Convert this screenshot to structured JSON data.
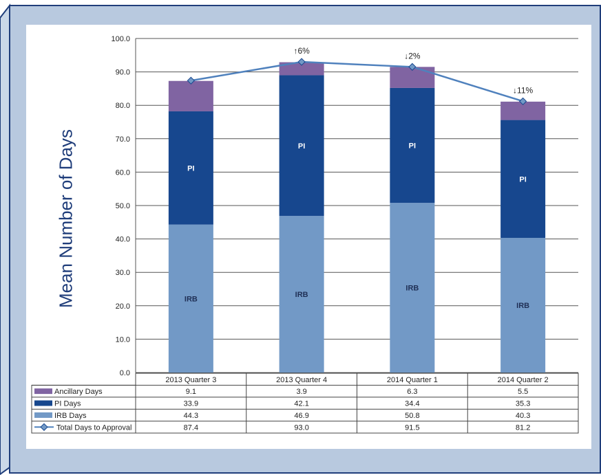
{
  "chart_data": {
    "type": "bar",
    "stacked": true,
    "categories": [
      "2013 Quarter 3",
      "2013 Quarter 4",
      "2014 Quarter 1",
      "2014 Quarter 2"
    ],
    "series": [
      {
        "name": "Ancillary Days",
        "kind": "bar",
        "color": "#8064a2",
        "values": [
          9.1,
          3.9,
          6.3,
          5.5
        ],
        "in_bar_labels": [
          "",
          "",
          "",
          ""
        ]
      },
      {
        "name": "PI Days",
        "kind": "bar",
        "color": "#17478e",
        "values": [
          33.9,
          42.1,
          34.4,
          35.3
        ],
        "in_bar_labels": [
          "PI",
          "PI",
          "PI",
          "PI"
        ]
      },
      {
        "name": "IRB Days",
        "kind": "bar",
        "color": "#7299c6",
        "values": [
          44.3,
          46.9,
          50.8,
          40.3
        ],
        "in_bar_labels": [
          "IRB",
          "IRB",
          "IRB",
          "IRB"
        ]
      },
      {
        "name": "Total Days to Approval",
        "kind": "line",
        "color": "#4f81bd",
        "values": [
          87.4,
          93.0,
          91.5,
          81.2
        ]
      }
    ],
    "table_values": [
      [
        "9.1",
        "3.9",
        "6.3",
        "5.5"
      ],
      [
        "33.9",
        "42.1",
        "34.4",
        "35.3"
      ],
      [
        "44.3",
        "46.9",
        "50.8",
        "40.3"
      ],
      [
        "87.4",
        "93.0",
        "91.5",
        "81.2"
      ]
    ],
    "annotations": [
      "",
      "↑6%",
      "↓2%",
      "↓11%"
    ],
    "ylabel": "Mean Number of Days",
    "ylim": [
      0,
      100
    ],
    "yticks": [
      "0.0",
      "10.0",
      "20.0",
      "30.0",
      "40.0",
      "50.0",
      "60.0",
      "70.0",
      "80.0",
      "90.0",
      "100.0"
    ],
    "grid": true,
    "legend": "data-table"
  },
  "colors": {
    "frame_background": "#b8c9df",
    "frame_border": "#1f3d7a",
    "grid": "#555555",
    "axis_title": "#1f3d7a"
  }
}
